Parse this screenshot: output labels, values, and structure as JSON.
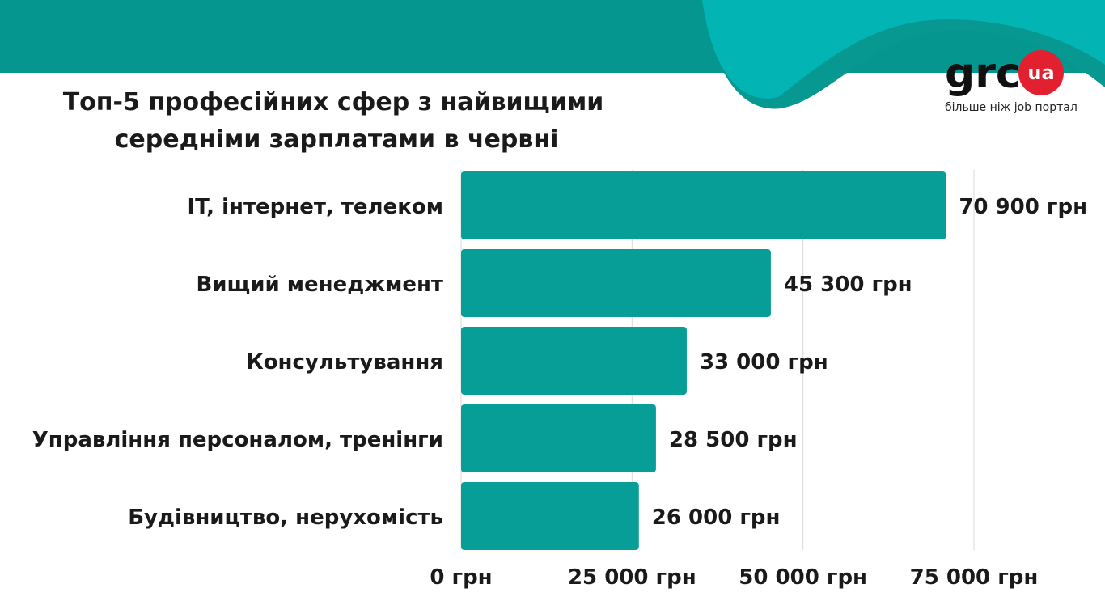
{
  "colors": {
    "bar": "#089e98",
    "header_band": "#04968f",
    "wave_light": "#02b4b4",
    "wave_dark": "#069891",
    "grid": "#d9d9d9",
    "logo_badge": "#e3202f"
  },
  "logo": {
    "brand": "grc",
    "badge": "ua",
    "tagline": "більше ніж job портал"
  },
  "chart_data": {
    "type": "bar",
    "orientation": "horizontal",
    "title_lines": [
      "Топ-5 професійних сфер з найвищими",
      "середніми зарплатами в червні"
    ],
    "categories": [
      "IT, інтернет, телеком",
      "Вищий менеджмент",
      "Консультування",
      "Управління персоналом, тренінги",
      "Будівництво, нерухомість"
    ],
    "values": [
      70900,
      45300,
      33000,
      28500,
      26000
    ],
    "value_labels": [
      "70 900 грн",
      "45 300 грн",
      "33 000 грн",
      "28 500 грн",
      "26 000 грн"
    ],
    "xlim": [
      0,
      75000
    ],
    "x_ticks": [
      0,
      25000,
      50000,
      75000
    ],
    "x_tick_labels": [
      "0 грн",
      "25 000 грн",
      "50 000 грн",
      "75 000 грн"
    ],
    "grid": true,
    "legend": "none"
  }
}
